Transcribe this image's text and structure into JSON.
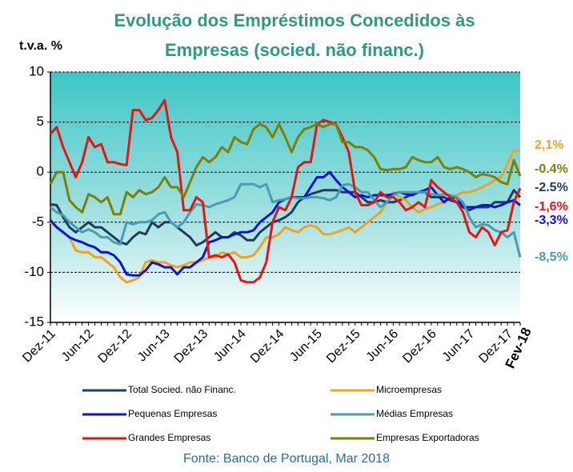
{
  "chart_data": {
    "type": "line",
    "title": [
      "Evolução dos Empréstimos Concedidos às",
      "Empresas (socied. não financ.)"
    ],
    "y_label": "t.v.a. %",
    "source": "Fonte: Banco de Portugal,  Mar 2018",
    "categories": [
      "Dez-11",
      null,
      null,
      null,
      null,
      null,
      "Jun-12",
      null,
      null,
      null,
      null,
      null,
      "Dez-12",
      null,
      null,
      null,
      null,
      null,
      "Jun-13",
      null,
      null,
      null,
      null,
      null,
      "Dez-13",
      null,
      null,
      null,
      null,
      null,
      "Jun-14",
      null,
      null,
      null,
      null,
      null,
      "Dez-14",
      null,
      null,
      null,
      null,
      null,
      "Jun-15",
      null,
      null,
      null,
      null,
      null,
      "Dez-15",
      null,
      null,
      null,
      null,
      null,
      "Jun-16",
      null,
      null,
      null,
      null,
      null,
      "Dez-16",
      null,
      null,
      null,
      null,
      null,
      "Jun-17",
      null,
      null,
      null,
      null,
      null,
      "Dez-17",
      null,
      "Fev-18"
    ],
    "ylim": [
      -15,
      10
    ],
    "yticks": [
      10,
      5,
      0,
      -5,
      -10,
      -15
    ],
    "grid": true,
    "series": [
      {
        "name": "Total Socied. não Financ.",
        "color": "#1f3d5c",
        "last_label": "-2.5%",
        "values": [
          -3.2,
          -3.3,
          -4.5,
          -5.5,
          -6,
          -5.5,
          -5,
          -5.5,
          -5.5,
          -6,
          -6.5,
          -7,
          -7.2,
          -6.5,
          -6,
          -6.2,
          -5,
          -5.5,
          -5,
          -5,
          -5.5,
          -6,
          -6.5,
          -7.3,
          -7,
          -6.5,
          -6,
          -6.5,
          -6.5,
          -6,
          -6.3,
          -6.8,
          -6.8,
          -6,
          -5.5,
          -5,
          -4.8,
          -4.5,
          -4,
          -3,
          -2.5,
          -2.2,
          -2,
          -1.8,
          -1.8,
          -1.8,
          -2,
          -2,
          -2,
          -2.5,
          -3,
          -3,
          -2.8,
          -3,
          -3,
          -2.8,
          -2.5,
          -2.2,
          -2,
          -2,
          -2.5,
          -2.5,
          -2.5,
          -2.8,
          -3,
          -3.5,
          -3.8,
          -3.5,
          -3.5,
          -3.5,
          -3,
          -3,
          -3,
          -1.8,
          -2.5
        ]
      },
      {
        "name": "Microempresas",
        "color": "#f5a11c",
        "last_label": "2,1%",
        "values": [
          -5,
          -5.5,
          -6,
          -6.5,
          -7.8,
          -8,
          -8,
          -8.5,
          -8.5,
          -9,
          -9.5,
          -10.5,
          -11,
          -10.8,
          -10.5,
          -9,
          -8.8,
          -9,
          -9,
          -9.3,
          -9.5,
          -9.3,
          -9,
          -9,
          -8.8,
          -8.5,
          -8.5,
          -8,
          -8.2,
          -8,
          -8.5,
          -8.5,
          -8.3,
          -7.5,
          -6.5,
          -6.5,
          -6.2,
          -5.5,
          -5.8,
          -6,
          -5.5,
          -5.3,
          -5.5,
          -6.2,
          -6.2,
          -6,
          -5.8,
          -5.5,
          -6,
          -5.5,
          -5,
          -4.5,
          -4,
          -3,
          -2,
          -2.5,
          -2.8,
          -3.5,
          -4,
          -3.7,
          -3.5,
          -3.2,
          -3,
          -2.5,
          -2.3,
          -2,
          -2,
          -1.8,
          -1.5,
          -1.2,
          -0.8,
          -0.5,
          0.8,
          2.2,
          2.1
        ]
      },
      {
        "name": "Pequenas Empresas",
        "color": "#1010e6",
        "last_label": "-3,3%",
        "values": [
          -4.8,
          -5.5,
          -6,
          -6.5,
          -6.8,
          -7,
          -7.3,
          -7.5,
          -8,
          -8,
          -8.3,
          -9,
          -10.2,
          -10.3,
          -10.3,
          -9.8,
          -9,
          -9.2,
          -9.5,
          -9.5,
          -10.2,
          -9.5,
          -9.5,
          -9,
          -8.5,
          -7,
          -6.8,
          -6.5,
          -6.5,
          -6.2,
          -6,
          -6,
          -5.8,
          -5,
          -4.5,
          -4,
          -3,
          -2.7,
          -2.5,
          -2.5,
          -2.5,
          -1.5,
          -0.5,
          -0.5,
          0,
          -0.8,
          -1.5,
          -2,
          -2.5,
          -2.3,
          -2.5,
          -2.3,
          -2.3,
          -2.3,
          -2.2,
          -2,
          -2.2,
          -2.3,
          -2,
          -1.8,
          -1.5,
          -2.3,
          -3,
          -2.5,
          -2.5,
          -3.5,
          -3.5,
          -3.5,
          -3.3,
          -3.3,
          -3.5,
          -3.3,
          -3,
          -2.8,
          -3.3
        ]
      },
      {
        "name": "Médias Empresas",
        "color": "#4a9bb3",
        "last_label": "-8,5%",
        "values": [
          -3.5,
          -4,
          -4.3,
          -5,
          -5.5,
          -6,
          -5.7,
          -6,
          -6.5,
          -6.5,
          -7,
          -7.2,
          -5,
          -5.2,
          -5,
          -5,
          -4.8,
          -4.2,
          -4,
          -5,
          -5.5,
          -5,
          -4,
          -3.2,
          -3.3,
          -3.5,
          -3.2,
          -3,
          -2.8,
          -2.5,
          -1.2,
          -1.2,
          -1.2,
          -1.5,
          -1.2,
          -3,
          -2.8,
          -2.7,
          -2.5,
          -2.6,
          -2.6,
          -2.5,
          -2.5,
          -2.6,
          -2.8,
          -2.5,
          -1.3,
          -1.2,
          -1.5,
          -2,
          -2,
          -2.8,
          -3.5,
          -3,
          -2.3,
          -2,
          -2,
          -2,
          -2,
          -2,
          -2.2,
          -2.3,
          -2.2,
          -2.3,
          -2.5,
          -3,
          -4.5,
          -5.5,
          -5.2,
          -5.3,
          -5.8,
          -6,
          -6.5,
          -6,
          -8.5
        ]
      },
      {
        "name": "Grandes Empresas",
        "color": "#ee1111",
        "last_label": "-1,6%",
        "values": [
          3.8,
          4.5,
          2.5,
          1,
          -0.5,
          1,
          3.5,
          2.5,
          2.8,
          1,
          1,
          0.8,
          0.7,
          6.2,
          6.2,
          5.2,
          5.4,
          6.2,
          7.2,
          3.5,
          2,
          -3.8,
          -3.8,
          -2.5,
          -3,
          -8.5,
          -8.3,
          -8.5,
          -8.2,
          -9,
          -10.8,
          -11,
          -11,
          -10.5,
          -9,
          -5,
          -3.5,
          -3.8,
          -2.5,
          0.5,
          1,
          1,
          4.8,
          5.2,
          5,
          4.8,
          3.5,
          2,
          -2,
          -3.3,
          -3.3,
          -3,
          -2,
          -2.5,
          -2.5,
          -3,
          -3.8,
          -3.5,
          -3,
          -3.5,
          -0.8,
          -1.5,
          -2,
          -2.5,
          -3,
          -4,
          -6,
          -6.5,
          -5.5,
          -6,
          -7.3,
          -6,
          -5.8,
          -3,
          -1.6
        ]
      },
      {
        "name": "Empresas Exportadoras",
        "color": "#7f7f00",
        "last_label": "-0.4%",
        "values": [
          -1.2,
          0,
          0,
          -2.8,
          -3.5,
          -4,
          -2.2,
          -2.5,
          -3,
          -2.5,
          -4.2,
          -4.2,
          -2,
          -2.5,
          -1.8,
          -2.2,
          -2,
          -1.5,
          -0.5,
          -1.5,
          -1.5,
          -2.5,
          -1,
          0.5,
          1.5,
          1,
          1.5,
          2.5,
          2,
          3.5,
          3,
          2.8,
          4.3,
          4.8,
          4.5,
          3.5,
          4.8,
          3.5,
          2,
          3.5,
          4.3,
          4.5,
          4.8,
          4.5,
          4.8,
          4.8,
          3,
          3,
          2.5,
          2.5,
          2.2,
          1.5,
          0.3,
          0.2,
          0.3,
          0.3,
          0.5,
          1.5,
          1.2,
          1,
          1,
          1.5,
          0.5,
          0.3,
          0.5,
          0.3,
          0,
          -0.5,
          -0.2,
          -0.3,
          -0.5,
          -1,
          -1.2,
          1.2,
          -0.4
        ]
      }
    ]
  }
}
